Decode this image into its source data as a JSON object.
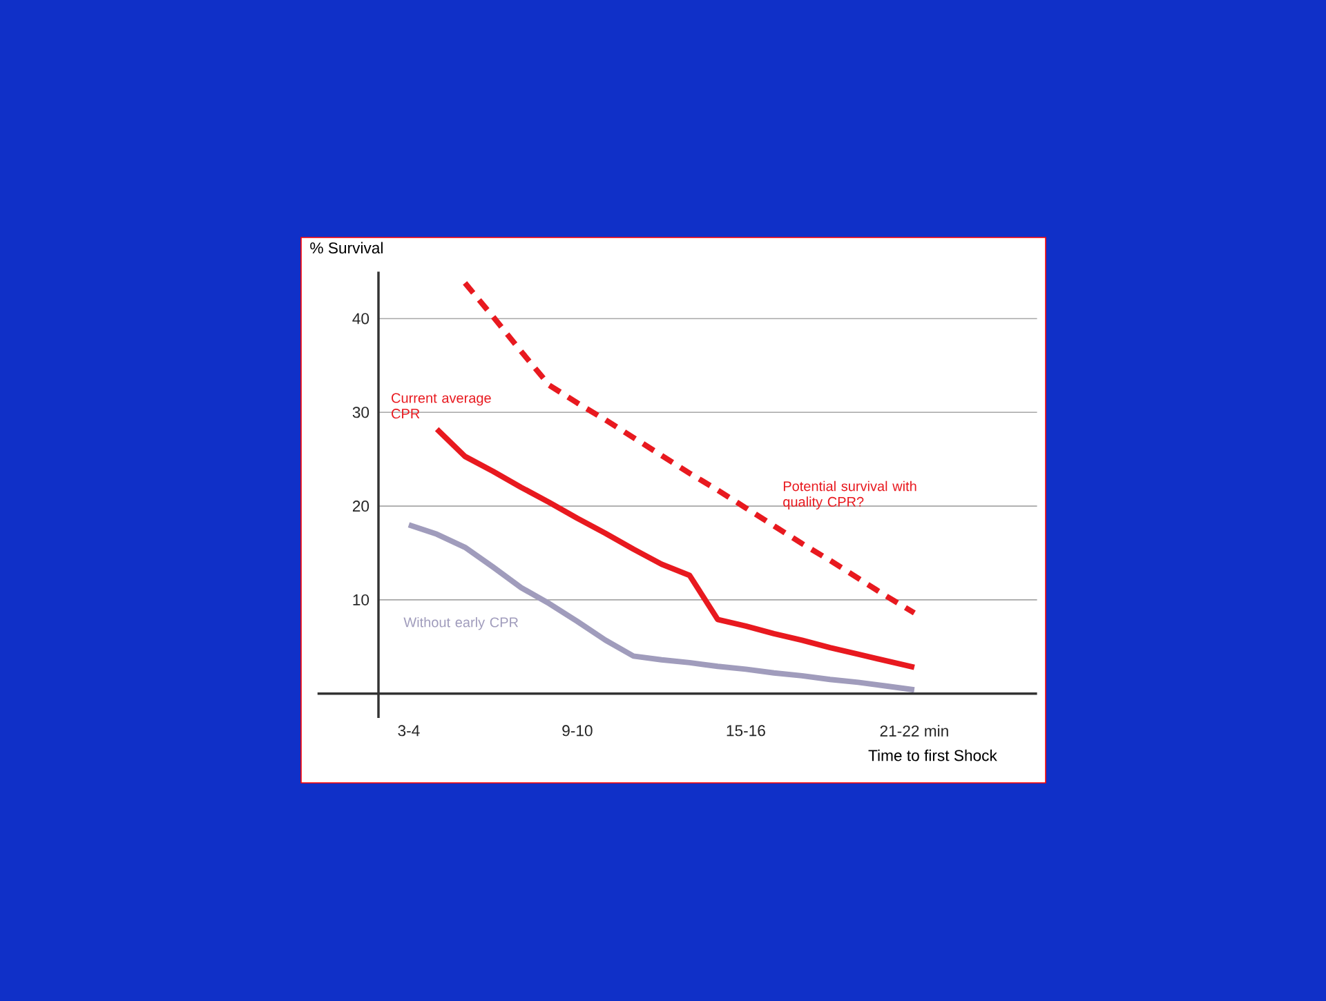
{
  "chart_data": {
    "type": "line",
    "xlabel": "Time to first Shock",
    "ylabel": "% Survival",
    "categories": [
      "3-4",
      null,
      null,
      null,
      null,
      null,
      "9-10",
      null,
      null,
      null,
      null,
      null,
      "15-16",
      null,
      null,
      null,
      null,
      null,
      "21-22 min",
      null,
      null,
      null,
      null
    ],
    "ylim": [
      -2.6,
      45
    ],
    "yticks": [
      10,
      20,
      30,
      40
    ],
    "grid": "y",
    "legend": false,
    "marker": "none",
    "series": [
      {
        "name": "Potential survival with quality CPR?",
        "color": "#e8191f",
        "line_style": "dashed",
        "values": [
          null,
          null,
          43.8,
          40.2,
          36.5,
          32.9,
          31.0,
          29.2,
          27.3,
          25.4,
          23.5,
          21.7,
          19.8,
          17.9,
          16.0,
          14.2,
          12.3,
          10.4,
          8.6,
          null,
          null,
          null,
          null
        ]
      },
      {
        "name": "Current average CPR",
        "color": "#e8191f",
        "line_style": "solid",
        "values": [
          null,
          28.2,
          25.3,
          23.7,
          22.0,
          20.4,
          18.7,
          17.1,
          15.4,
          13.8,
          12.6,
          7.9,
          7.2,
          6.4,
          5.7,
          4.9,
          4.2,
          3.5,
          2.8,
          null,
          null,
          null,
          null
        ]
      },
      {
        "name": "Without early CPR",
        "color": "#a09cbc",
        "line_style": "solid",
        "values": [
          18.0,
          17.0,
          15.6,
          13.5,
          11.3,
          9.6,
          7.7,
          5.7,
          4.0,
          3.6,
          3.3,
          2.9,
          2.6,
          2.2,
          1.9,
          1.5,
          1.2,
          0.8,
          0.4,
          null,
          null,
          null,
          null
        ]
      }
    ]
  }
}
